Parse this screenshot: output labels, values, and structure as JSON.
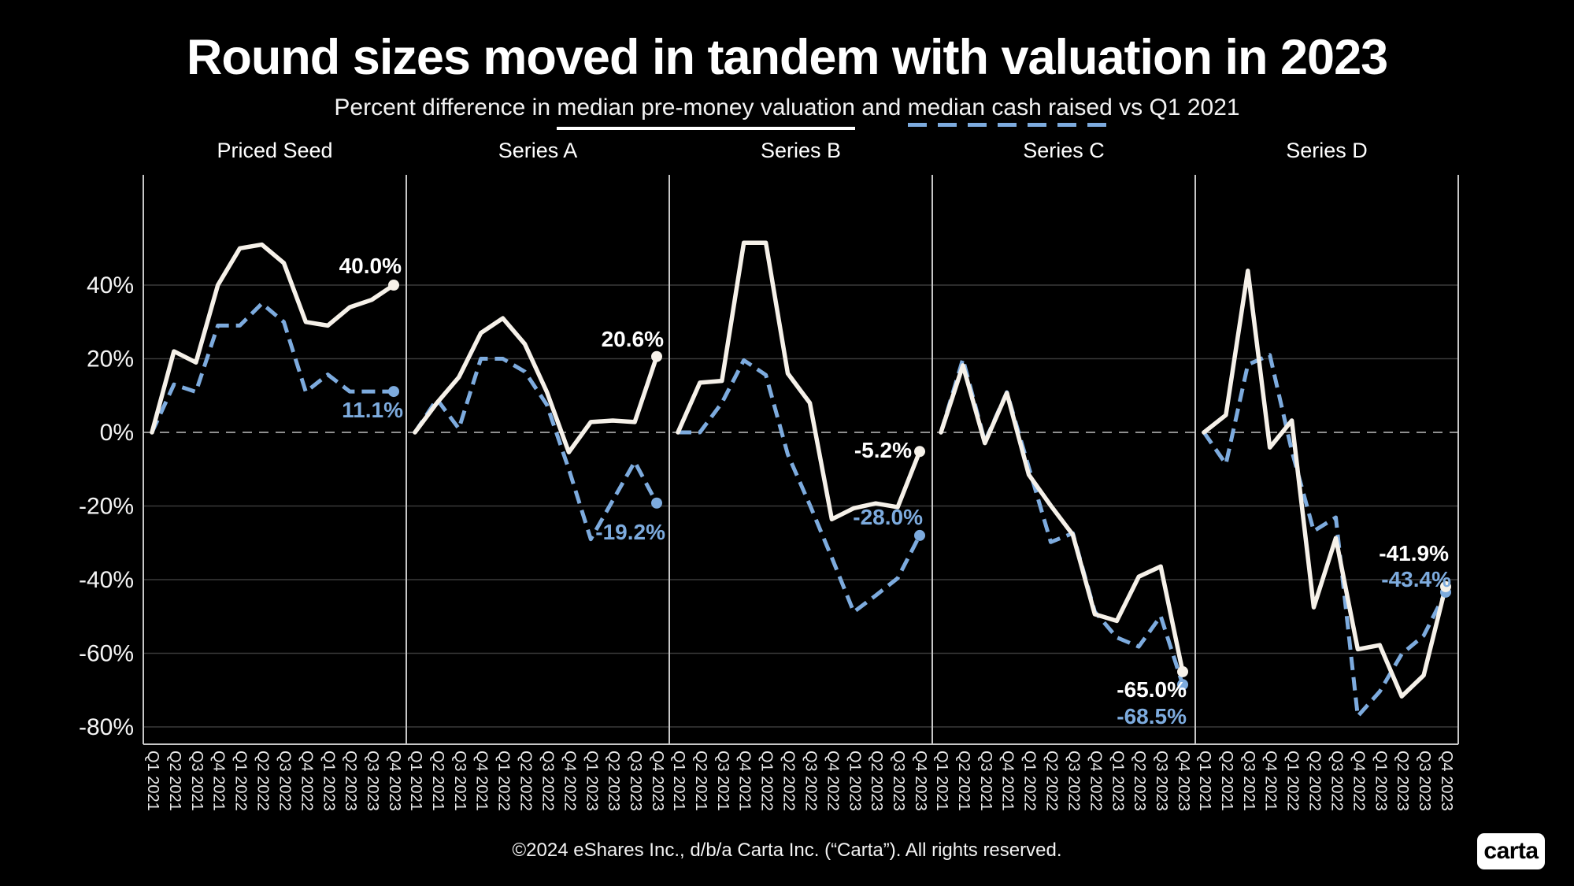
{
  "title": "Round sizes moved in tandem with valuation in 2023",
  "subtitle": {
    "prefix": "Percent difference in ",
    "valuation_phrase": "median pre-money valuation",
    "middle": " and ",
    "cash_phrase": "median cash raised",
    "suffix": " vs Q1 2021"
  },
  "footer": "©2024 eShares Inc., d/b/a Carta Inc. (“Carta”). All rights reserved.",
  "logo_text": "carta",
  "colors": {
    "background": "#000000",
    "valuation_line": "#f6f1e9",
    "cash_line": "#7dabde",
    "grid": "#3a3a3a",
    "zero_line": "#8f8f8f",
    "frame": "#c7c7c7",
    "valuation_label": "#ffffff",
    "cash_label": "#7dabde"
  },
  "chart_data": {
    "type": "line",
    "title": "Round sizes moved in tandem with valuation in 2023",
    "subtitle": "Percent difference in median pre-money valuation and median cash raised vs Q1 2021",
    "series_names": [
      "median pre-money valuation",
      "median cash raised"
    ],
    "x_labels": [
      "Q1 2021",
      "Q2 2021",
      "Q3 2021",
      "Q4 2021",
      "Q1 2022",
      "Q2 2022",
      "Q3 2022",
      "Q4 2022",
      "Q1 2023",
      "Q2 2023",
      "Q3 2023",
      "Q4 2023"
    ],
    "y_axis": {
      "tick_labels": [
        "40%",
        "20%",
        "0%",
        "-20%",
        "-40%",
        "-60%",
        "-80%"
      ],
      "tick_values": [
        40,
        20,
        0,
        -20,
        -40,
        -60,
        -80
      ],
      "min": -80,
      "max": 55,
      "unit": "percent",
      "zero_line_dashed": true
    },
    "panels": [
      {
        "name": "Priced Seed",
        "valuation": [
          0,
          22,
          19,
          40,
          50,
          51,
          46,
          30,
          29,
          34,
          36,
          40.0
        ],
        "cash": [
          0,
          13,
          11,
          29,
          29,
          35,
          30,
          11,
          15.7,
          11.1,
          11.1,
          11.1
        ],
        "end_labels": {
          "valuation": "40.0%",
          "cash": "11.1%"
        }
      },
      {
        "name": "Series A",
        "valuation": [
          0,
          8,
          15,
          27,
          31,
          24,
          11,
          -5.4,
          2.8,
          3.2,
          2.8,
          20.6
        ],
        "cash": [
          0,
          9,
          1,
          20,
          20,
          16.5,
          7.5,
          -10,
          -29,
          -18.5,
          -8,
          -19.2
        ],
        "end_labels": {
          "valuation": "20.6%",
          "cash": "-19.2%"
        }
      },
      {
        "name": "Series B",
        "valuation": [
          0,
          13.5,
          14,
          51.5,
          51.5,
          16,
          8,
          -23.6,
          -20.6,
          -19.3,
          -20.3,
          -5.2
        ],
        "cash": [
          0,
          0,
          8,
          19.6,
          15.6,
          -6,
          -19.7,
          -34,
          -48.8,
          -44.3,
          -39.6,
          -28.0
        ],
        "end_labels": {
          "valuation": "-5.2%",
          "cash": "-28.0%"
        }
      },
      {
        "name": "Series C",
        "valuation": [
          0,
          18.2,
          -2.9,
          10.7,
          -11.5,
          -19.9,
          -27.8,
          -49.4,
          -51.2,
          -39.2,
          -36.4,
          -65.0
        ],
        "cash": [
          0,
          19.9,
          -2.5,
          10.9,
          -9.5,
          -29.8,
          -27.4,
          -48.7,
          -55.7,
          -58.2,
          -49.9,
          -68.5
        ],
        "end_labels": {
          "valuation": "-65.0%",
          "cash": "-68.5%"
        }
      },
      {
        "name": "Series D",
        "valuation": [
          0,
          4.7,
          43.9,
          -4.1,
          3.2,
          -47.5,
          -28.7,
          -58.9,
          -57.8,
          -71.7,
          -66,
          -41.9
        ],
        "cash": [
          0,
          -8.6,
          18.4,
          21,
          -5,
          -26.8,
          -23.1,
          -77.1,
          -70.4,
          -60.2,
          -55.2,
          -43.4
        ],
        "end_labels": {
          "valuation": "-41.9%",
          "cash": "-43.4%"
        }
      }
    ]
  }
}
